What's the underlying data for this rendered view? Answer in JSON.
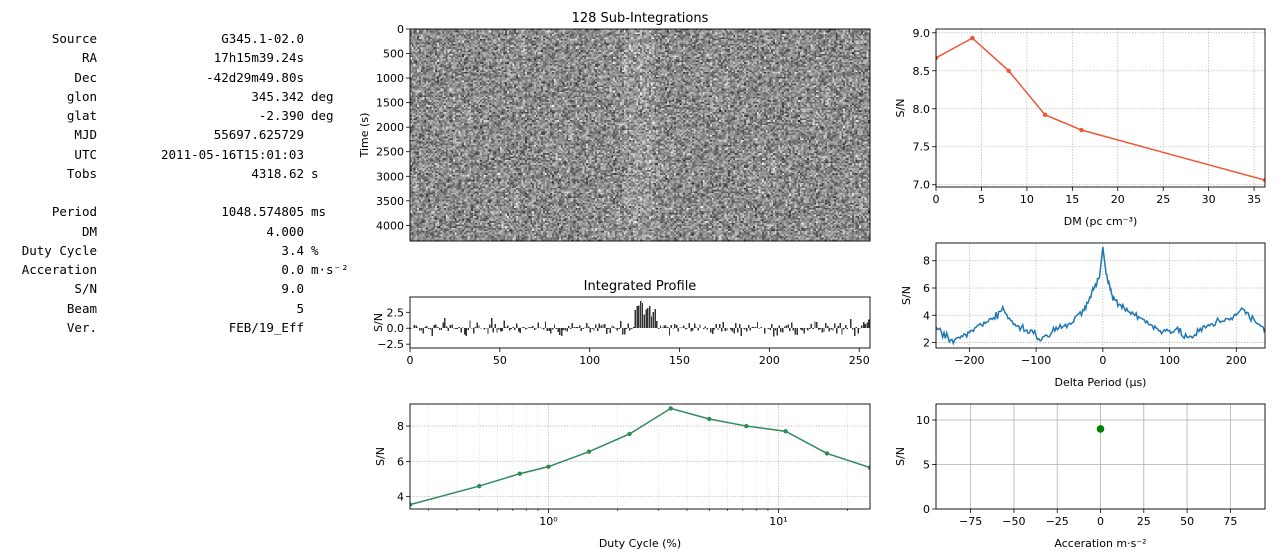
{
  "info": [
    {
      "label": "Source",
      "value": "G345.1-02.0",
      "unit": ""
    },
    {
      "label": "RA",
      "value": "17h15m39.24s",
      "unit": ""
    },
    {
      "label": "Dec",
      "value": "-42d29m49.80s",
      "unit": ""
    },
    {
      "label": "glon",
      "value": "345.342",
      "unit": "deg"
    },
    {
      "label": "glat",
      "value": "-2.390",
      "unit": "deg"
    },
    {
      "label": "MJD",
      "value": "55697.625729",
      "unit": ""
    },
    {
      "label": "UTC",
      "value": "2011-05-16T15:01:03",
      "unit": ""
    },
    {
      "label": "Tobs",
      "value": "4318.62",
      "unit": "s"
    },
    {
      "label": "",
      "value": "",
      "unit": ""
    },
    {
      "label": "Period",
      "value": "1048.574805",
      "unit": "ms"
    },
    {
      "label": "DM",
      "value": "4.000",
      "unit": ""
    },
    {
      "label": "Duty Cycle",
      "value": "3.4",
      "unit": "%"
    },
    {
      "label": "Acceration",
      "value": "0.0",
      "unit": "m·s⁻²"
    },
    {
      "label": "S/N",
      "value": "9.0",
      "unit": ""
    },
    {
      "label": "Beam",
      "value": "5",
      "unit": ""
    },
    {
      "label": "Ver.",
      "value": "FEB/19_Eff",
      "unit": ""
    }
  ],
  "chart_data": [
    {
      "id": "subints",
      "type": "heatmap",
      "title": "128 Sub-Integrations",
      "xlabel": "",
      "ylabel": "Time (s)",
      "xlim": [
        0,
        256
      ],
      "ylim": [
        4318.62,
        0
      ],
      "yticks": [
        0,
        500,
        1000,
        1500,
        2000,
        2500,
        3000,
        3500,
        4000
      ],
      "ytick_labels": [
        "0",
        "500",
        "1000",
        "1500",
        "2000",
        "2500",
        "3000",
        "3500",
        "4000"
      ],
      "rows": 128,
      "cols": 256,
      "colormap": "gray"
    },
    {
      "id": "profile",
      "type": "bar",
      "title": "Integrated Profile",
      "xlabel": "",
      "ylabel": "S/N",
      "xlim": [
        0,
        256
      ],
      "ylim": [
        -3.1,
        4.9
      ],
      "xticks": [
        0,
        50,
        100,
        150,
        200,
        250
      ],
      "xtick_labels": [
        "0",
        "50",
        "100",
        "150",
        "200",
        "250"
      ],
      "yticks": [
        -2.5,
        0,
        2.5
      ],
      "ytick_labels": [
        "−2.5",
        "0.0",
        "2.5"
      ],
      "bins": 256,
      "color": "#333333"
    },
    {
      "id": "duty",
      "type": "line",
      "title": "",
      "xlabel": "Duty Cycle (%)",
      "ylabel": "S/N",
      "xscale": "log",
      "xlim": [
        0.25,
        25
      ],
      "ylim": [
        3.3,
        9.25
      ],
      "xticks": [
        1,
        10
      ],
      "xtick_labels": [
        "10⁰",
        "10¹"
      ],
      "yticks": [
        4,
        6,
        8
      ],
      "ytick_labels": [
        "4",
        "6",
        "8"
      ],
      "color": "#2e8b57",
      "grid": true,
      "x": [
        0.25,
        0.5,
        0.75,
        1.0,
        1.5,
        2.25,
        3.4,
        5.0,
        7.25,
        10.75,
        16.25,
        25.0
      ],
      "y": [
        3.55,
        4.6,
        5.3,
        5.7,
        6.55,
        7.55,
        9.0,
        8.4,
        8.0,
        7.7,
        6.45,
        5.65
      ]
    },
    {
      "id": "dm",
      "type": "line",
      "title": "",
      "xlabel": "DM (pc cm⁻³)",
      "ylabel": "S/N",
      "xlim": [
        0,
        36.2
      ],
      "ylim": [
        6.97,
        9.05
      ],
      "xticks": [
        0,
        5,
        10,
        15,
        20,
        25,
        30,
        35
      ],
      "xtick_labels": [
        "0",
        "5",
        "10",
        "15",
        "20",
        "25",
        "30",
        "35"
      ],
      "yticks": [
        7.0,
        7.5,
        8.0,
        8.5,
        9.0
      ],
      "ytick_labels": [
        "7.0",
        "7.5",
        "8.0",
        "8.5",
        "9.0"
      ],
      "color": "#ee5533",
      "grid": true,
      "x": [
        0,
        4,
        8,
        12,
        16,
        36.2
      ],
      "y": [
        8.67,
        8.93,
        8.5,
        7.92,
        7.72,
        7.06
      ]
    },
    {
      "id": "period",
      "type": "line",
      "title": "",
      "xlabel": "Delta Period (μs)",
      "ylabel": "S/N",
      "xlim": [
        -250,
        243
      ],
      "ylim": [
        1.6,
        9.3
      ],
      "xticks": [
        -200,
        -100,
        0,
        100,
        200
      ],
      "xtick_labels": [
        "−200",
        "−100",
        "0",
        "100",
        "200"
      ],
      "yticks": [
        2,
        4,
        6,
        8
      ],
      "ytick_labels": [
        "2",
        "4",
        "6",
        "8"
      ],
      "color": "#1f77b4",
      "grid": true,
      "x": [
        -250,
        -230,
        -210,
        -190,
        -170,
        -150,
        -130,
        -110,
        -90,
        -70,
        -50,
        -30,
        -15,
        -5,
        0,
        5,
        15,
        30,
        50,
        70,
        90,
        110,
        130,
        150,
        170,
        190,
        210,
        230,
        243
      ],
      "y": [
        3.2,
        2.1,
        2.4,
        3.1,
        3.7,
        4.4,
        3.2,
        2.9,
        2.2,
        3.2,
        3.3,
        4.2,
        5.8,
        6.8,
        9.0,
        7.0,
        5.3,
        4.6,
        4.0,
        3.3,
        2.9,
        2.9,
        2.3,
        3.0,
        3.5,
        3.8,
        4.4,
        3.4,
        3.0
      ]
    },
    {
      "id": "accel",
      "type": "scatter",
      "title": "",
      "xlabel": "Acceration m·s⁻²",
      "ylabel": "S/N",
      "xlim": [
        -95,
        95
      ],
      "ylim": [
        0,
        11.8
      ],
      "xticks": [
        -75,
        -50,
        -25,
        0,
        25,
        50,
        75
      ],
      "xtick_labels": [
        "−75",
        "−50",
        "−25",
        "0",
        "25",
        "50",
        "75"
      ],
      "yticks": [
        0,
        5,
        10
      ],
      "ytick_labels": [
        "0",
        "5",
        "10"
      ],
      "color": "#008000",
      "grid": true,
      "x": [
        0
      ],
      "y": [
        9.0
      ]
    }
  ]
}
